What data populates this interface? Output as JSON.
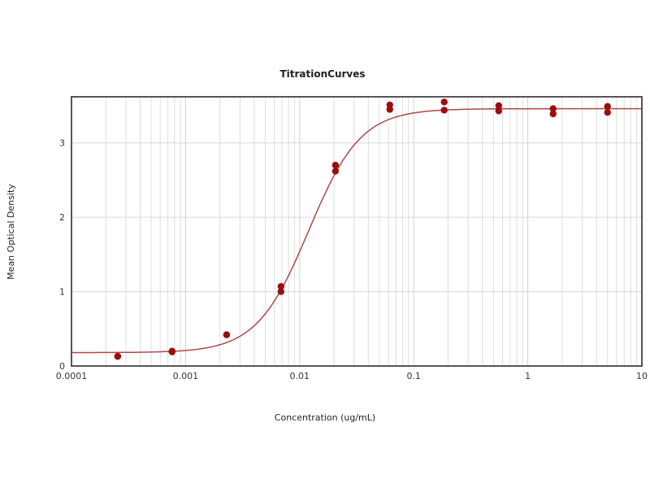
{
  "chart_data": {
    "type": "scatter",
    "title": "TitrationCurves",
    "xlabel": "Concentration (ug/mL)",
    "ylabel": "Mean Optical Density",
    "xscale": "log",
    "xlim": [
      0.0001,
      10
    ],
    "ylim": [
      0,
      3.62
    ],
    "x_ticks": [
      0.0001,
      0.001,
      0.01,
      0.1,
      1,
      10
    ],
    "x_tick_labels": [
      "0.0001",
      "0.001",
      "0.01",
      "0.1",
      "1",
      "10"
    ],
    "y_ticks": [
      0,
      1,
      2,
      3
    ],
    "y_tick_labels": [
      "0",
      "1",
      "2",
      "3"
    ],
    "grid": true,
    "legend": "none",
    "colors": {
      "points": "#9b0d0d",
      "curve": "#b04848",
      "grid": "#dddddd",
      "frame": "#555555"
    },
    "series": [
      {
        "x": [
          0.000254,
          0.000762,
          0.00229,
          0.00686,
          0.0206,
          0.0617,
          0.185,
          0.556,
          1.667,
          5
        ],
        "replicates": [
          [
            0.13,
            0.13
          ],
          [
            0.19,
            0.2
          ],
          [
            0.42,
            0.42
          ],
          [
            1.0,
            1.07
          ],
          [
            2.62,
            2.7
          ],
          [
            3.45,
            3.51
          ],
          [
            3.44,
            3.55
          ],
          [
            3.43,
            3.5
          ],
          [
            3.39,
            3.46
          ],
          [
            3.41,
            3.49
          ]
        ]
      }
    ],
    "fit_curve": {
      "model": "4PL",
      "bottom": 0.18,
      "top": 3.46,
      "ec50": 0.012,
      "hill": 1.9
    }
  }
}
